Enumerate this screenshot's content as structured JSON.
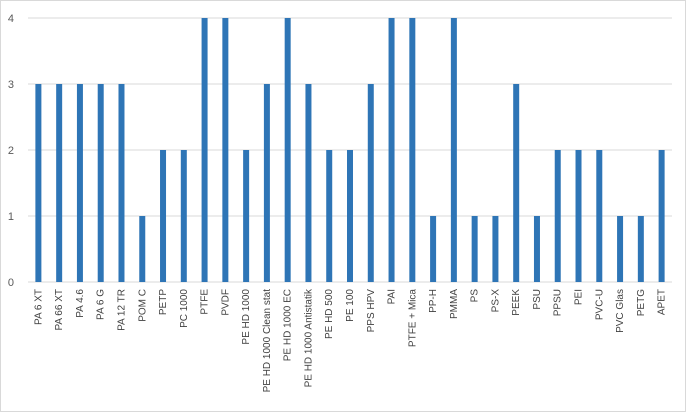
{
  "chart_data": {
    "type": "bar",
    "title": "",
    "xlabel": "",
    "ylabel": "",
    "ylim": [
      0,
      4
    ],
    "yticks": [
      0,
      1,
      2,
      3,
      4
    ],
    "grid": true,
    "legend": "none",
    "bar_color": "#2e75b6",
    "grid_color": "#d9d9d9",
    "categories": [
      "PA 6 XT",
      "PA 66 XT",
      "PA 4.6",
      "PA 6 G",
      "PA 12 TR",
      "POM C",
      "PETP",
      "PC 1000",
      "PTFE",
      "PVDF",
      "PE HD 1000",
      "PE HD 1000 Clean stat",
      "PE HD 1000 EC",
      "PE HD 1000 Antistatik",
      "PE HD 500",
      "PE 100",
      "PPS HPV",
      "PAI",
      "PTFE + Mica",
      "PP-H",
      "PMMA",
      "PS",
      "PS-X",
      "PEEK",
      "PSU",
      "PPSU",
      "PEI",
      "PVC-U",
      "PVC Glas",
      "PETG",
      "APET"
    ],
    "values": [
      3,
      3,
      3,
      3,
      3,
      1,
      2,
      2,
      4,
      4,
      2,
      3,
      4,
      3,
      2,
      2,
      3,
      4,
      4,
      1,
      4,
      1,
      1,
      3,
      1,
      2,
      2,
      2,
      1,
      1,
      2
    ]
  }
}
